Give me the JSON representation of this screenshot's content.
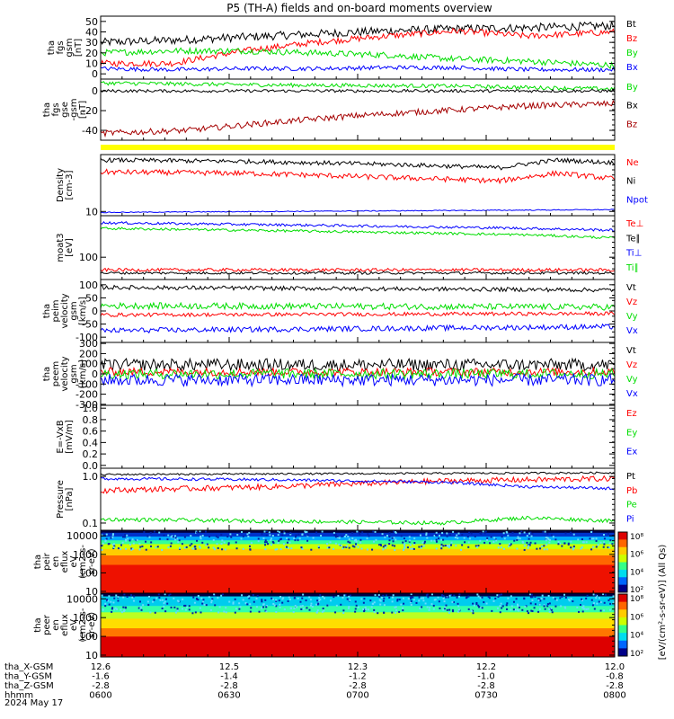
{
  "title": "P5 (TH-A) fields and on-board moments overview",
  "date_label": "2024 May 17",
  "colors": {
    "black": "#000000",
    "red": "#ff0000",
    "green": "#00dd00",
    "blue": "#0000ff",
    "darkred": "#a50000",
    "yellow": "#ffff00"
  },
  "chart_data": [
    {
      "type": "line",
      "ylabel": [
        "tha",
        "fgs",
        "gsm",
        "[nT]"
      ],
      "ylim": [
        -5,
        55
      ],
      "yticks": [
        0,
        10,
        20,
        30,
        40,
        50
      ],
      "series": [
        {
          "name": "Bt",
          "color": "#000000",
          "x": [
            0,
            25,
            50,
            75,
            100,
            125,
            150,
            180
          ],
          "y": [
            30,
            32,
            35,
            38,
            41,
            43,
            44,
            46
          ],
          "noise": 4
        },
        {
          "name": "Bz",
          "color": "#ff0000",
          "x": [
            0,
            25,
            50,
            75,
            100,
            125,
            150,
            180
          ],
          "y": [
            10,
            10,
            22,
            30,
            36,
            41,
            36,
            40
          ],
          "noise": 3
        },
        {
          "name": "By",
          "color": "#00dd00",
          "x": [
            0,
            25,
            50,
            75,
            100,
            125,
            150,
            180
          ],
          "y": [
            20,
            22,
            22,
            20,
            18,
            14,
            12,
            8
          ],
          "noise": 3
        },
        {
          "name": "Bx",
          "color": "#0000ff",
          "x": [
            0,
            25,
            50,
            75,
            100,
            125,
            150,
            180
          ],
          "y": [
            5,
            4,
            5,
            5,
            6,
            6,
            4,
            4
          ],
          "noise": 2
        }
      ]
    },
    {
      "type": "line",
      "ylabel": [
        "tha",
        "fgs",
        "gse",
        "-gsm",
        "[nT]"
      ],
      "ylim": [
        -50,
        12
      ],
      "yticks": [
        -40,
        -20,
        0
      ],
      "series": [
        {
          "name": "By",
          "color": "#00dd00",
          "x": [
            0,
            60,
            120,
            180
          ],
          "y": [
            8,
            6,
            5,
            2
          ],
          "noise": 2
        },
        {
          "name": "Bx",
          "color": "#000000",
          "x": [
            0,
            60,
            120,
            180
          ],
          "y": [
            0,
            0,
            0,
            0
          ],
          "noise": 1.5
        },
        {
          "name": "Bz",
          "color": "#a50000",
          "x": [
            0,
            30,
            60,
            90,
            120,
            150,
            180
          ],
          "y": [
            -43,
            -40,
            -32,
            -25,
            -20,
            -15,
            -13
          ],
          "noise": 3
        }
      ]
    },
    {
      "type": "line",
      "log": true,
      "ylabel": [
        "Density",
        "[cm-3]"
      ],
      "ylim": [
        8,
        200
      ],
      "yticks": [
        10
      ],
      "ytick_labels": [
        "10"
      ],
      "series": [
        {
          "name": "Ne",
          "color": "#ff0000",
          "x": [
            0,
            50,
            100,
            140,
            160,
            180
          ],
          "y": [
            80,
            75,
            60,
            50,
            75,
            55
          ],
          "noise": 0.06
        },
        {
          "name": "Ni",
          "color": "#000000",
          "x": [
            0,
            50,
            100,
            140,
            160,
            180
          ],
          "y": [
            150,
            140,
            120,
            100,
            150,
            130
          ],
          "noise": 0.05
        },
        {
          "name": "Npot",
          "color": "#0000ff",
          "x": [
            0,
            60,
            120,
            180
          ],
          "y": [
            9.5,
            10,
            10.5,
            11
          ],
          "noise": 0.01
        }
      ]
    },
    {
      "type": "line",
      "log": true,
      "ylabel": [
        "moat3",
        "[eV]"
      ],
      "ylim": [
        20,
        2000
      ],
      "yticks": [
        100
      ],
      "ytick_labels": [
        "100"
      ],
      "series": [
        {
          "name": "Te⊥",
          "color": "#ff0000",
          "x": [
            0,
            180
          ],
          "y": [
            40,
            40
          ],
          "noise": 0.05
        },
        {
          "name": "Te∥",
          "color": "#000000",
          "x": [
            0,
            180
          ],
          "y": [
            32,
            32
          ],
          "noise": 0.04
        },
        {
          "name": "Ti⊥",
          "color": "#0000ff",
          "x": [
            0,
            150,
            180
          ],
          "y": [
            1200,
            800,
            700
          ],
          "noise": 0.04
        },
        {
          "name": "Ti∥",
          "color": "#00dd00",
          "x": [
            0,
            150,
            180
          ],
          "y": [
            800,
            500,
            400
          ],
          "noise": 0.04
        }
      ]
    },
    {
      "type": "line",
      "ylabel": [
        "tha",
        "peim",
        "velocity",
        "gsm",
        "[km/s]"
      ],
      "ylim": [
        -120,
        120
      ],
      "yticks": [
        -100,
        -50,
        0,
        50,
        100
      ],
      "series": [
        {
          "name": "Vt",
          "color": "#000000",
          "x": [
            0,
            180
          ],
          "y": [
            90,
            80
          ],
          "noise": 8
        },
        {
          "name": "Vz",
          "color": "#ff0000",
          "x": [
            0,
            180
          ],
          "y": [
            -15,
            -10
          ],
          "noise": 7
        },
        {
          "name": "Vy",
          "color": "#00dd00",
          "x": [
            0,
            180
          ],
          "y": [
            20,
            15
          ],
          "noise": 12
        },
        {
          "name": "Vx",
          "color": "#0000ff",
          "x": [
            0,
            180
          ],
          "y": [
            -75,
            -60
          ],
          "noise": 10
        }
      ]
    },
    {
      "type": "line",
      "ylabel": [
        "tha",
        "peem",
        "velocity",
        "gsm",
        "[km/s]"
      ],
      "ylim": [
        -310,
        310
      ],
      "yticks": [
        -300,
        -200,
        -100,
        0,
        100,
        200,
        300
      ],
      "series": [
        {
          "name": "Vt",
          "color": "#000000",
          "x": [
            0,
            180
          ],
          "y": [
            90,
            90
          ],
          "noise": 60
        },
        {
          "name": "Vz",
          "color": "#ff0000",
          "x": [
            0,
            180
          ],
          "y": [
            20,
            20
          ],
          "noise": 40
        },
        {
          "name": "Vy",
          "color": "#00dd00",
          "x": [
            0,
            180
          ],
          "y": [
            0,
            0
          ],
          "noise": 50
        },
        {
          "name": "Vx",
          "color": "#0000ff",
          "x": [
            0,
            180
          ],
          "y": [
            -60,
            -60
          ],
          "noise": 60
        }
      ]
    },
    {
      "type": "line",
      "ylabel": [
        "E=-VxB",
        "[mV/m]"
      ],
      "ylim": [
        -0.05,
        1.05
      ],
      "yticks": [
        0,
        0.2,
        0.4,
        0.6,
        0.8,
        1.0
      ],
      "ytick_labels": [
        "0.0",
        "0.2",
        "0.4",
        "0.6",
        "0.8",
        "1.0"
      ],
      "series": [
        {
          "name": "Ez",
          "color": "#ff0000",
          "x": [],
          "y": []
        },
        {
          "name": "Ey",
          "color": "#00dd00",
          "x": [],
          "y": []
        },
        {
          "name": "Ex",
          "color": "#0000ff",
          "x": [],
          "y": []
        }
      ]
    },
    {
      "type": "line",
      "log": true,
      "ylabel": [
        "Pressure",
        "[nPa]"
      ],
      "ylim": [
        0.07,
        1.5
      ],
      "yticks": [
        0.1,
        1.0
      ],
      "ytick_labels": [
        "0.1",
        "1.0"
      ],
      "series": [
        {
          "name": "Pt",
          "color": "#000000",
          "x": [
            0,
            180
          ],
          "y": [
            1.1,
            1.2
          ],
          "noise": 0.02
        },
        {
          "name": "Pb",
          "color": "#ff0000",
          "x": [
            0,
            60,
            120,
            180
          ],
          "y": [
            0.5,
            0.6,
            0.8,
            0.9
          ],
          "noise": 0.06
        },
        {
          "name": "Pe",
          "color": "#00dd00",
          "x": [
            0,
            60,
            120,
            150,
            180
          ],
          "y": [
            0.12,
            0.11,
            0.1,
            0.13,
            0.11
          ],
          "noise": 0.04
        },
        {
          "name": "Pi",
          "color": "#0000ff",
          "x": [
            0,
            60,
            120,
            150,
            180
          ],
          "y": [
            0.9,
            0.85,
            0.75,
            0.6,
            0.55
          ],
          "noise": 0.03
        }
      ]
    },
    {
      "type": "heatmap",
      "ylabel": [
        "tha",
        "peir",
        "en",
        "eflux",
        "eV",
        "(cm2-s-",
        "sr-eV)"
      ],
      "ylim": [
        8,
        20000
      ],
      "yticks": [
        10,
        100,
        1000,
        10000
      ],
      "ytick_labels": [
        "10",
        "100",
        "1000",
        "10000"
      ]
    },
    {
      "type": "heatmap",
      "ylabel": [
        "tha",
        "peer",
        "en",
        "eflux",
        "eV",
        "(cm2-s-",
        "sr-eV)"
      ],
      "ylim": [
        8,
        20000
      ],
      "yticks": [
        10,
        100,
        1000,
        10000
      ],
      "ytick_labels": [
        "10",
        "100",
        "1000",
        "10000"
      ]
    }
  ],
  "colorbar": {
    "tick_labels": [
      "10⁸",
      "10⁶",
      "10⁴",
      "10²"
    ],
    "title": "[eV/(cm²-s-sr-eV)] (All Qs)"
  },
  "x_axis": {
    "range_minutes": [
      0,
      120
    ],
    "tick_minutes": [
      0,
      30,
      60,
      90,
      120
    ],
    "rows": [
      {
        "name": "tha_X-GSM",
        "values": [
          "12.6",
          "12.5",
          "12.3",
          "12.2",
          "12.0"
        ]
      },
      {
        "name": "tha_Y-GSM",
        "values": [
          "-1.6",
          "-1.4",
          "-1.2",
          "-1.0",
          "-0.8"
        ]
      },
      {
        "name": "tha_Z-GSM",
        "values": [
          "-2.8",
          "-2.8",
          "-2.8",
          "-2.8",
          "-2.8"
        ]
      },
      {
        "name": "hhmm",
        "values": [
          "0600",
          "0630",
          "0700",
          "0730",
          "0800"
        ]
      }
    ]
  }
}
